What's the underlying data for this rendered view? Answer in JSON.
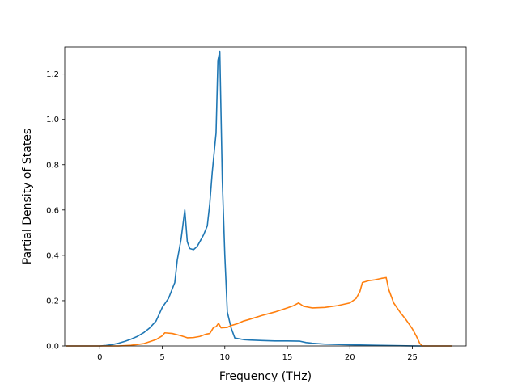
{
  "chart_data": {
    "type": "line",
    "title": "",
    "xlabel": "Frequency (THz)",
    "ylabel": "Partial Density of States",
    "xlim": [
      -2.8,
      29.3
    ],
    "ylim": [
      0.0,
      1.32
    ],
    "xticks": [
      0,
      5,
      10,
      15,
      20,
      25
    ],
    "xtick_labels": [
      "0",
      "5",
      "10",
      "15",
      "20",
      "25"
    ],
    "yticks": [
      0.0,
      0.2,
      0.4,
      0.6,
      0.8,
      1.0,
      1.2
    ],
    "ytick_labels": [
      "0.0",
      "0.2",
      "0.4",
      "0.6",
      "0.8",
      "1.0",
      "1.2"
    ],
    "grid": false,
    "legend": "none",
    "colors": [
      "#1f77b4",
      "#ff7f0e"
    ],
    "series": [
      {
        "color": "#1f77b4",
        "points": [
          [
            -2.7,
            0.0
          ],
          [
            0.0,
            0.0
          ],
          [
            0.5,
            0.002
          ],
          [
            1.0,
            0.006
          ],
          [
            1.5,
            0.012
          ],
          [
            2.0,
            0.02
          ],
          [
            2.5,
            0.03
          ],
          [
            3.0,
            0.042
          ],
          [
            3.5,
            0.058
          ],
          [
            4.0,
            0.08
          ],
          [
            4.5,
            0.11
          ],
          [
            5.0,
            0.17
          ],
          [
            5.5,
            0.21
          ],
          [
            6.0,
            0.28
          ],
          [
            6.2,
            0.38
          ],
          [
            6.5,
            0.47
          ],
          [
            6.8,
            0.6
          ],
          [
            7.0,
            0.46
          ],
          [
            7.2,
            0.43
          ],
          [
            7.5,
            0.425
          ],
          [
            7.8,
            0.44
          ],
          [
            8.0,
            0.46
          ],
          [
            8.3,
            0.49
          ],
          [
            8.6,
            0.53
          ],
          [
            8.8,
            0.63
          ],
          [
            9.0,
            0.77
          ],
          [
            9.3,
            0.94
          ],
          [
            9.45,
            1.26
          ],
          [
            9.6,
            1.3
          ],
          [
            9.8,
            0.73
          ],
          [
            10.0,
            0.4
          ],
          [
            10.2,
            0.15
          ],
          [
            10.5,
            0.08
          ],
          [
            10.8,
            0.035
          ],
          [
            11.5,
            0.028
          ],
          [
            12.0,
            0.026
          ],
          [
            13.0,
            0.024
          ],
          [
            14.0,
            0.022
          ],
          [
            15.0,
            0.022
          ],
          [
            16.0,
            0.021
          ],
          [
            16.5,
            0.015
          ],
          [
            17.0,
            0.012
          ],
          [
            18.0,
            0.008
          ],
          [
            20.0,
            0.005
          ],
          [
            22.0,
            0.003
          ],
          [
            24.0,
            0.001
          ],
          [
            25.5,
            0.0
          ],
          [
            28.2,
            0.0
          ]
        ]
      },
      {
        "color": "#ff7f0e",
        "points": [
          [
            -2.7,
            0.0
          ],
          [
            1.5,
            0.0
          ],
          [
            2.5,
            0.003
          ],
          [
            3.5,
            0.01
          ],
          [
            4.5,
            0.028
          ],
          [
            5.0,
            0.045
          ],
          [
            5.2,
            0.058
          ],
          [
            5.8,
            0.055
          ],
          [
            6.5,
            0.045
          ],
          [
            7.0,
            0.036
          ],
          [
            7.5,
            0.037
          ],
          [
            8.0,
            0.042
          ],
          [
            8.5,
            0.052
          ],
          [
            8.8,
            0.055
          ],
          [
            9.1,
            0.082
          ],
          [
            9.3,
            0.085
          ],
          [
            9.5,
            0.1
          ],
          [
            9.7,
            0.08
          ],
          [
            10.2,
            0.082
          ],
          [
            10.5,
            0.09
          ],
          [
            11.0,
            0.098
          ],
          [
            11.5,
            0.11
          ],
          [
            12.0,
            0.118
          ],
          [
            13.0,
            0.135
          ],
          [
            14.0,
            0.15
          ],
          [
            15.0,
            0.168
          ],
          [
            15.5,
            0.178
          ],
          [
            15.9,
            0.19
          ],
          [
            16.3,
            0.175
          ],
          [
            17.0,
            0.168
          ],
          [
            18.0,
            0.17
          ],
          [
            19.0,
            0.178
          ],
          [
            20.0,
            0.19
          ],
          [
            20.5,
            0.21
          ],
          [
            20.8,
            0.24
          ],
          [
            21.0,
            0.28
          ],
          [
            21.5,
            0.288
          ],
          [
            22.0,
            0.292
          ],
          [
            22.5,
            0.298
          ],
          [
            22.9,
            0.302
          ],
          [
            23.1,
            0.25
          ],
          [
            23.5,
            0.19
          ],
          [
            24.0,
            0.15
          ],
          [
            24.5,
            0.115
          ],
          [
            25.0,
            0.075
          ],
          [
            25.3,
            0.045
          ],
          [
            25.6,
            0.01
          ],
          [
            25.8,
            0.0
          ],
          [
            28.2,
            0.0
          ]
        ]
      }
    ]
  }
}
